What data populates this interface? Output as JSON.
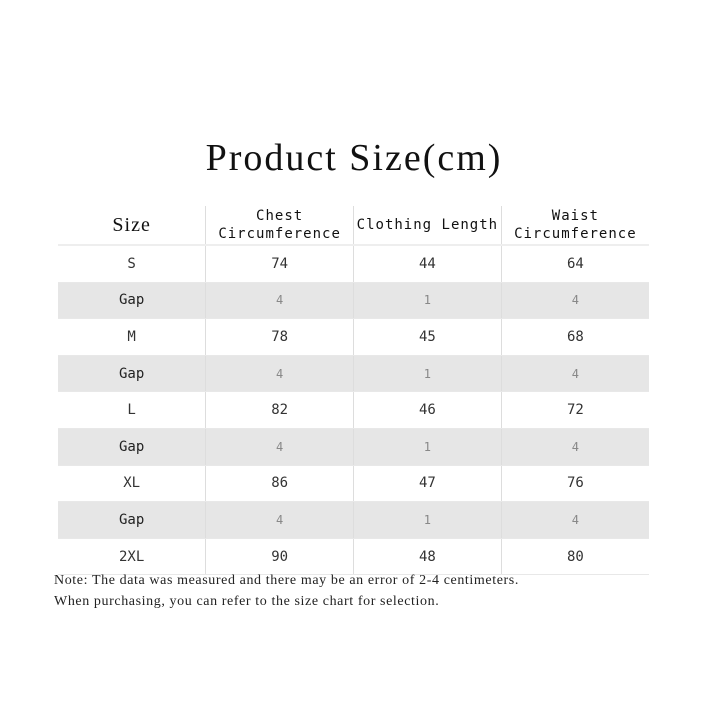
{
  "title": "Product Size(cm)",
  "headers": [
    "Size",
    "Chest Circumference",
    "Clothing Length",
    "Waist Circumference"
  ],
  "rows": [
    [
      "S",
      "74",
      "44",
      "64"
    ],
    [
      "Gap",
      "4",
      "1",
      "4"
    ],
    [
      "M",
      "78",
      "45",
      "68"
    ],
    [
      "Gap",
      "4",
      "1",
      "4"
    ],
    [
      "L",
      "82",
      "46",
      "72"
    ],
    [
      "Gap",
      "4",
      "1",
      "4"
    ],
    [
      "XL",
      "86",
      "47",
      "76"
    ],
    [
      "Gap",
      "4",
      "1",
      "4"
    ],
    [
      "2XL",
      "90",
      "48",
      "80"
    ]
  ],
  "note": [
    "Note: The data was measured and there may be an error of 2-4 centimeters.",
    "When purchasing, you can refer to the size chart for selection."
  ],
  "colors": {
    "gap_row_bg": "#e6e6e6"
  }
}
